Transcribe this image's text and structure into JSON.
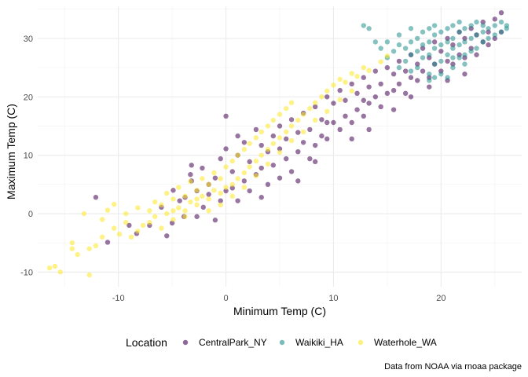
{
  "chart_data": {
    "type": "scatter",
    "title": "",
    "xlabel": "Minimum Temp (C)",
    "ylabel": "Maximum Temp (C)",
    "xlim": [
      -17.5,
      27.5
    ],
    "ylim": [
      -12.5,
      35.5
    ],
    "x_ticks": [
      -10,
      0,
      10,
      20
    ],
    "y_ticks": [
      -10,
      0,
      10,
      20,
      30
    ],
    "grid": true,
    "legend_position": "bottom",
    "legend_title": "Location",
    "caption": "Data from NOAA via rnoaa package",
    "series": [
      {
        "name": "CentralPark_NY",
        "color": "#440154",
        "points": [
          [
            -12.1,
            2.8
          ],
          [
            -11.0,
            -4.9
          ],
          [
            -9.0,
            -2.0
          ],
          [
            -8.3,
            -3.4
          ],
          [
            -7.1,
            -2.0
          ],
          [
            -6.0,
            1.1
          ],
          [
            -5.5,
            -3.8
          ],
          [
            -5.0,
            -1.6
          ],
          [
            -4.9,
            4.0
          ],
          [
            -4.3,
            2.2
          ],
          [
            -3.9,
            -0.5
          ],
          [
            -3.8,
            2.8
          ],
          [
            -3.2,
            5.6
          ],
          [
            -3.2,
            8.3
          ],
          [
            -2.7,
            -0.5
          ],
          [
            -2.7,
            3.9
          ],
          [
            -2.1,
            1.1
          ],
          [
            -1.6,
            3.3
          ],
          [
            -1.6,
            5.0
          ],
          [
            -1.0,
            -1.1
          ],
          [
            -1.0,
            6.1
          ],
          [
            -0.5,
            2.2
          ],
          [
            -0.5,
            9.4
          ],
          [
            0.0,
            3.9
          ],
          [
            0.0,
            11.1
          ],
          [
            0.0,
            16.7
          ],
          [
            0.6,
            4.4
          ],
          [
            0.6,
            7.2
          ],
          [
            1.1,
            2.2
          ],
          [
            1.1,
            10.0
          ],
          [
            1.7,
            5.6
          ],
          [
            1.7,
            12.2
          ],
          [
            2.2,
            3.9
          ],
          [
            2.2,
            8.9
          ],
          [
            2.8,
            6.7
          ],
          [
            2.8,
            14.4
          ],
          [
            3.3,
            7.8
          ],
          [
            3.3,
            11.7
          ],
          [
            3.9,
            5.0
          ],
          [
            3.9,
            10.6
          ],
          [
            4.4,
            8.3
          ],
          [
            4.4,
            13.3
          ],
          [
            5.0,
            6.1
          ],
          [
            5.0,
            11.1
          ],
          [
            5.0,
            15.0
          ],
          [
            5.6,
            9.4
          ],
          [
            5.6,
            12.8
          ],
          [
            6.1,
            7.2
          ],
          [
            6.1,
            16.1
          ],
          [
            6.7,
            10.6
          ],
          [
            6.7,
            13.9
          ],
          [
            7.2,
            12.2
          ],
          [
            7.2,
            17.2
          ],
          [
            7.8,
            9.4
          ],
          [
            7.8,
            14.4
          ],
          [
            8.3,
            11.7
          ],
          [
            8.3,
            18.3
          ],
          [
            8.9,
            13.3
          ],
          [
            8.9,
            16.1
          ],
          [
            9.4,
            12.8
          ],
          [
            9.4,
            20.0
          ],
          [
            10.0,
            15.6
          ],
          [
            10.0,
            18.9
          ],
          [
            10.6,
            14.4
          ],
          [
            10.6,
            21.1
          ],
          [
            11.1,
            16.7
          ],
          [
            11.1,
            19.4
          ],
          [
            11.7,
            15.6
          ],
          [
            11.7,
            22.2
          ],
          [
            12.2,
            17.8
          ],
          [
            12.2,
            20.6
          ],
          [
            12.8,
            16.7
          ],
          [
            12.8,
            23.3
          ],
          [
            13.3,
            18.9
          ],
          [
            13.3,
            21.7
          ],
          [
            13.9,
            20.0
          ],
          [
            13.9,
            24.4
          ],
          [
            14.4,
            18.3
          ],
          [
            14.4,
            22.2
          ],
          [
            15.0,
            20.6
          ],
          [
            15.0,
            25.0
          ],
          [
            15.6,
            21.1
          ],
          [
            15.6,
            23.9
          ],
          [
            16.1,
            22.2
          ],
          [
            16.1,
            26.1
          ],
          [
            16.7,
            20.6
          ],
          [
            16.7,
            24.4
          ],
          [
            17.2,
            23.3
          ],
          [
            17.2,
            27.2
          ],
          [
            17.8,
            22.8
          ],
          [
            17.8,
            25.6
          ],
          [
            18.3,
            24.4
          ],
          [
            18.3,
            28.3
          ],
          [
            18.9,
            23.3
          ],
          [
            18.9,
            26.7
          ],
          [
            19.4,
            25.6
          ],
          [
            19.4,
            29.4
          ],
          [
            20.0,
            24.4
          ],
          [
            20.0,
            27.8
          ],
          [
            20.6,
            26.1
          ],
          [
            20.6,
            30.0
          ],
          [
            21.1,
            25.6
          ],
          [
            21.1,
            28.9
          ],
          [
            21.7,
            27.2
          ],
          [
            21.7,
            31.1
          ],
          [
            22.2,
            26.7
          ],
          [
            22.2,
            30.0
          ],
          [
            22.8,
            28.3
          ],
          [
            22.8,
            31.7
          ],
          [
            23.3,
            27.2
          ],
          [
            23.3,
            30.6
          ],
          [
            23.9,
            29.4
          ],
          [
            23.9,
            32.8
          ],
          [
            24.4,
            28.9
          ],
          [
            24.4,
            31.1
          ],
          [
            25.0,
            30.0
          ],
          [
            25.0,
            33.3
          ],
          [
            25.6,
            31.1
          ],
          [
            25.6,
            34.4
          ],
          [
            -3.3,
            6.7
          ],
          [
            -2.2,
            7.8
          ],
          [
            1.1,
            13.3
          ],
          [
            3.3,
            2.8
          ],
          [
            6.7,
            5.6
          ],
          [
            8.3,
            8.9
          ],
          [
            9.4,
            15.6
          ],
          [
            11.7,
            12.8
          ],
          [
            12.8,
            19.4
          ],
          [
            13.3,
            14.4
          ],
          [
            15.6,
            17.8
          ],
          [
            17.2,
            20.0
          ],
          [
            18.9,
            21.7
          ],
          [
            20.6,
            22.8
          ],
          [
            22.2,
            23.9
          ]
        ]
      },
      {
        "name": "Waikiki_HA",
        "color": "#21908c",
        "points": [
          [
            12.8,
            32.2
          ],
          [
            13.3,
            31.7
          ],
          [
            13.9,
            29.4
          ],
          [
            14.4,
            28.3
          ],
          [
            15.0,
            26.7
          ],
          [
            15.6,
            27.8
          ],
          [
            16.1,
            28.9
          ],
          [
            16.1,
            30.6
          ],
          [
            16.7,
            26.1
          ],
          [
            16.7,
            28.3
          ],
          [
            17.2,
            27.2
          ],
          [
            17.2,
            29.4
          ],
          [
            17.2,
            31.7
          ],
          [
            17.8,
            25.0
          ],
          [
            17.8,
            27.8
          ],
          [
            17.8,
            30.0
          ],
          [
            18.3,
            26.7
          ],
          [
            18.3,
            28.9
          ],
          [
            18.3,
            31.1
          ],
          [
            18.9,
            23.9
          ],
          [
            18.9,
            27.2
          ],
          [
            18.9,
            29.4
          ],
          [
            18.9,
            31.7
          ],
          [
            19.4,
            25.6
          ],
          [
            19.4,
            28.3
          ],
          [
            19.4,
            30.6
          ],
          [
            19.4,
            32.2
          ],
          [
            20.0,
            26.1
          ],
          [
            20.0,
            28.9
          ],
          [
            20.0,
            31.1
          ],
          [
            20.6,
            23.3
          ],
          [
            20.6,
            27.2
          ],
          [
            20.6,
            29.4
          ],
          [
            20.6,
            31.7
          ],
          [
            21.1,
            25.0
          ],
          [
            21.1,
            28.3
          ],
          [
            21.1,
            30.0
          ],
          [
            21.1,
            32.2
          ],
          [
            21.7,
            26.7
          ],
          [
            21.7,
            28.9
          ],
          [
            21.7,
            31.1
          ],
          [
            21.7,
            32.8
          ],
          [
            22.2,
            27.2
          ],
          [
            22.2,
            29.4
          ],
          [
            22.2,
            31.7
          ],
          [
            22.8,
            27.8
          ],
          [
            22.8,
            30.0
          ],
          [
            22.8,
            32.2
          ],
          [
            23.3,
            28.3
          ],
          [
            23.3,
            30.6
          ],
          [
            23.3,
            32.8
          ],
          [
            23.9,
            29.4
          ],
          [
            23.9,
            31.1
          ],
          [
            23.9,
            32.2
          ],
          [
            24.4,
            30.0
          ],
          [
            24.4,
            31.7
          ],
          [
            25.0,
            30.6
          ],
          [
            25.0,
            32.2
          ],
          [
            25.6,
            31.1
          ],
          [
            25.6,
            32.8
          ],
          [
            26.1,
            31.7
          ],
          [
            26.1,
            32.2
          ],
          [
            20.0,
            23.9
          ],
          [
            18.9,
            22.8
          ],
          [
            17.2,
            24.4
          ],
          [
            22.2,
            25.6
          ],
          [
            15.0,
            29.4
          ],
          [
            16.1,
            25.0
          ],
          [
            19.4,
            23.3
          ],
          [
            21.1,
            26.7
          ]
        ]
      },
      {
        "name": "Waterhole_WA",
        "color": "#fde725",
        "points": [
          [
            -16.4,
            -9.3
          ],
          [
            -15.9,
            -9.0
          ],
          [
            -15.4,
            -10.0
          ],
          [
            -14.3,
            -5.0
          ],
          [
            -14.3,
            -6.0
          ],
          [
            -13.8,
            -7.0
          ],
          [
            -13.2,
            0.0
          ],
          [
            -12.7,
            -10.5
          ],
          [
            -12.7,
            -6.0
          ],
          [
            -12.1,
            -5.5
          ],
          [
            -11.5,
            -4.0
          ],
          [
            -11.5,
            -1.0
          ],
          [
            -11.0,
            0.6
          ],
          [
            -10.4,
            -2.5
          ],
          [
            -10.4,
            1.6
          ],
          [
            -9.9,
            -3.5
          ],
          [
            -9.3,
            -1.5
          ],
          [
            -9.3,
            0.0
          ],
          [
            -8.8,
            -4.0
          ],
          [
            -8.2,
            1.0
          ],
          [
            -7.7,
            -2.0
          ],
          [
            -7.1,
            0.5
          ],
          [
            -6.6,
            -0.5
          ],
          [
            -6.6,
            2.0
          ],
          [
            -6.0,
            1.5
          ],
          [
            -5.5,
            0.0
          ],
          [
            -5.5,
            3.5
          ],
          [
            -4.9,
            -1.0
          ],
          [
            -4.9,
            2.5
          ],
          [
            -4.4,
            1.0
          ],
          [
            -4.4,
            4.5
          ],
          [
            -3.8,
            0.5
          ],
          [
            -3.8,
            3.0
          ],
          [
            -3.3,
            2.0
          ],
          [
            -3.3,
            5.5
          ],
          [
            -2.7,
            1.5
          ],
          [
            -2.7,
            4.0
          ],
          [
            -2.2,
            3.0
          ],
          [
            -2.2,
            6.0
          ],
          [
            -1.6,
            2.5
          ],
          [
            -1.6,
            5.0
          ],
          [
            -1.1,
            4.0
          ],
          [
            -1.1,
            7.0
          ],
          [
            -0.5,
            3.5
          ],
          [
            -0.5,
            6.0
          ],
          [
            0.0,
            4.5
          ],
          [
            0.0,
            8.0
          ],
          [
            0.6,
            5.0
          ],
          [
            0.6,
            9.0
          ],
          [
            1.1,
            6.0
          ],
          [
            1.1,
            10.0
          ],
          [
            1.7,
            7.0
          ],
          [
            1.7,
            11.0
          ],
          [
            2.2,
            8.0
          ],
          [
            2.2,
            12.0
          ],
          [
            2.8,
            9.0
          ],
          [
            2.8,
            13.0
          ],
          [
            3.3,
            10.0
          ],
          [
            3.3,
            14.0
          ],
          [
            3.9,
            11.0
          ],
          [
            3.9,
            15.0
          ],
          [
            4.4,
            12.0
          ],
          [
            4.4,
            16.0
          ],
          [
            5.0,
            13.0
          ],
          [
            5.0,
            17.0
          ],
          [
            5.6,
            14.0
          ],
          [
            5.6,
            18.0
          ],
          [
            6.1,
            15.0
          ],
          [
            6.1,
            19.0
          ],
          [
            6.7,
            16.0
          ],
          [
            7.2,
            17.0
          ],
          [
            7.8,
            18.0
          ],
          [
            8.3,
            19.0
          ],
          [
            8.9,
            20.0
          ],
          [
            9.4,
            21.0
          ],
          [
            10.0,
            22.0
          ],
          [
            10.6,
            23.0
          ],
          [
            11.1,
            22.5
          ],
          [
            11.7,
            24.0
          ],
          [
            12.2,
            23.5
          ],
          [
            12.8,
            25.0
          ],
          [
            -8.2,
            -3.0
          ],
          [
            -7.1,
            -1.5
          ],
          [
            -6.0,
            -2.5
          ],
          [
            -4.9,
            0.5
          ],
          [
            -3.8,
            -0.5
          ],
          [
            -2.7,
            2.5
          ],
          [
            -1.6,
            0.5
          ],
          [
            -0.5,
            1.5
          ],
          [
            0.6,
            3.0
          ],
          [
            1.7,
            4.5
          ],
          [
            2.8,
            6.5
          ],
          [
            3.9,
            8.5
          ],
          [
            5.0,
            10.5
          ],
          [
            6.1,
            12.5
          ],
          [
            7.2,
            14.0
          ],
          [
            8.3,
            16.0
          ],
          [
            9.4,
            17.5
          ],
          [
            10.6,
            19.5
          ],
          [
            11.7,
            21.0
          ],
          [
            13.3,
            24.5
          ],
          [
            14.4,
            26.0
          ],
          [
            15.0,
            27.0
          ]
        ]
      }
    ]
  }
}
